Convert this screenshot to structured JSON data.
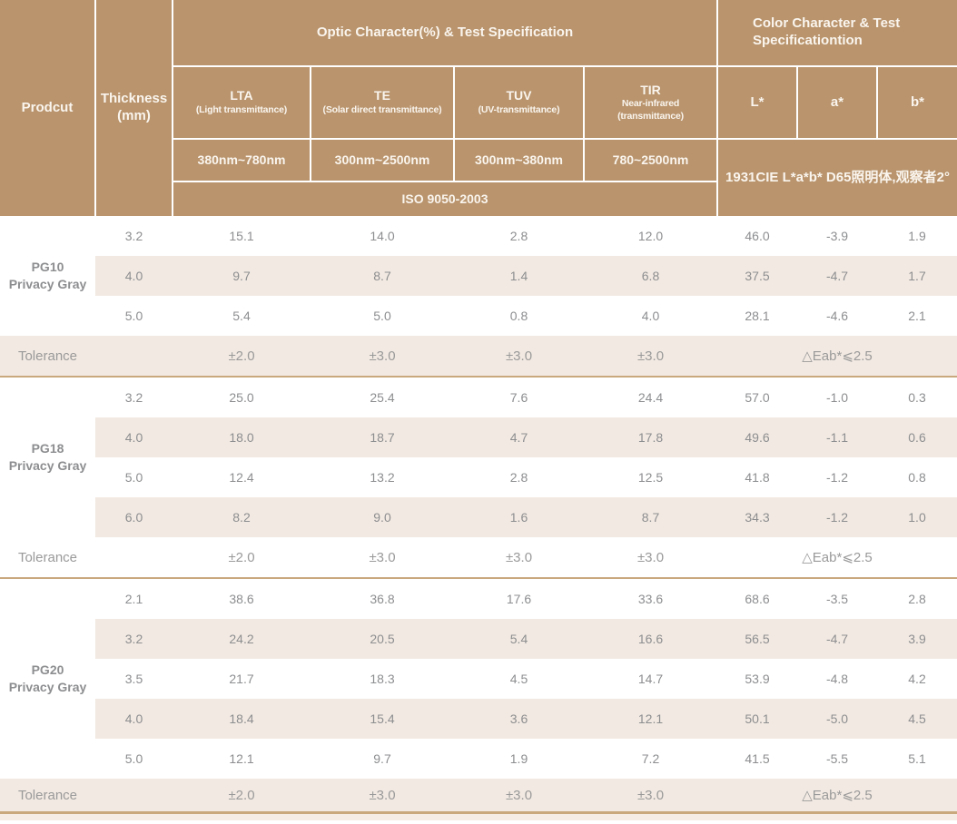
{
  "header": {
    "product_label": "Prodcut",
    "thickness_label": "Thickness\n(mm)",
    "optic_title": "Optic Character(%) & Test Specification",
    "color_title": "Color Character & Test\nSpecificationtion",
    "optic_columns": [
      {
        "abbr": "LTA",
        "desc": "(Light transmittance)",
        "range": "380nm~780nm"
      },
      {
        "abbr": "TE",
        "desc": "(Solar direct transmittance)",
        "range": "300nm~2500nm"
      },
      {
        "abbr": "TUV",
        "desc": "(UV-transmittance)",
        "range": "300nm~380nm"
      },
      {
        "abbr": "TIR",
        "desc": "Near-infrared\n(transmittance)",
        "range": "780~2500nm"
      }
    ],
    "color_columns": [
      "L*",
      "a*",
      "b*"
    ],
    "optic_standard": "ISO 9050-2003",
    "color_standard": "1931CIE L*a*b*  D65照明体,观察者2°"
  },
  "sections": [
    {
      "product": "PG10\nPrivacy Gray",
      "tolerance_shaded": true,
      "rows": [
        [
          "3.2",
          "15.1",
          "14.0",
          "2.8",
          "12.0",
          "46.0",
          "-3.9",
          "1.9"
        ],
        [
          "4.0",
          "9.7",
          "8.7",
          "1.4",
          "6.8",
          "37.5",
          "-4.7",
          "1.7"
        ],
        [
          "5.0",
          "5.4",
          "5.0",
          "0.8",
          "4.0",
          "28.1",
          "-4.6",
          "2.1"
        ]
      ]
    },
    {
      "product": "PG18\nPrivacy Gray",
      "tolerance_shaded": false,
      "rows": [
        [
          "3.2",
          "25.0",
          "25.4",
          "7.6",
          "24.4",
          "57.0",
          "-1.0",
          "0.3"
        ],
        [
          "4.0",
          "18.0",
          "18.7",
          "4.7",
          "17.8",
          "49.6",
          "-1.1",
          "0.6"
        ],
        [
          "5.0",
          "12.4",
          "13.2",
          "2.8",
          "12.5",
          "41.8",
          "-1.2",
          "0.8"
        ],
        [
          "6.0",
          "8.2",
          "9.0",
          "1.6",
          "8.7",
          "34.3",
          "-1.2",
          "1.0"
        ]
      ]
    },
    {
      "product": "PG20\nPrivacy Gray",
      "tolerance_shaded": true,
      "rows": [
        [
          "2.1",
          "38.6",
          "36.8",
          "17.6",
          "33.6",
          "68.6",
          "-3.5",
          "2.8"
        ],
        [
          "3.2",
          "24.2",
          "20.5",
          "5.4",
          "16.6",
          "56.5",
          "-4.7",
          "3.9"
        ],
        [
          "3.5",
          "21.7",
          "18.3",
          "4.5",
          "14.7",
          "53.9",
          "-4.8",
          "4.2"
        ],
        [
          "4.0",
          "18.4",
          "15.4",
          "3.6",
          "12.1",
          "50.1",
          "-5.0",
          "4.5"
        ],
        [
          "5.0",
          "12.1",
          "9.7",
          "1.9",
          "7.2",
          "41.5",
          "-5.5",
          "5.1"
        ]
      ]
    }
  ],
  "tolerance": {
    "label": "Tolerance",
    "values": [
      "±2.0",
      "±3.0",
      "±3.0",
      "±3.0"
    ],
    "color_value": "△Eab*⩽2.5"
  },
  "colors": {
    "header_bg": "#b9946d",
    "header_text": "#faf5ee",
    "stripe_bg": "#f2e9e2",
    "divider": "#c9a87d",
    "value_text": "#8d8e90",
    "product_text": "#3e4347"
  }
}
